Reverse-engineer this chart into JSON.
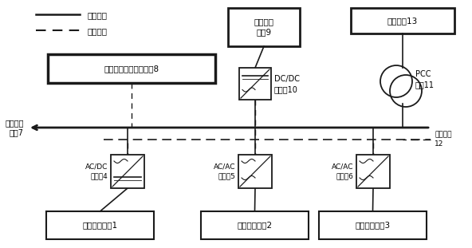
{
  "bg_color": "#ffffff",
  "line_color": "#1a1a1a",
  "legend_solid_label": "电力线路",
  "legend_dashed_label": "通信线路",
  "central_ctrl_label": "微电网群中央控制系统8",
  "storage_label": "联合储能\n系统9",
  "external_grid_label": "外部电网13",
  "op1_label": "微电网运营商1",
  "op2_label": "微电网运营商2",
  "op3_label": "微电网运营商3",
  "dcdc_label": "DC/DC\n变换器10",
  "acdc_label": "AC/DC\n变换器4",
  "acac5_label": "AC/AC\n变换器5",
  "acac6_label": "AC/AC\n变换器6",
  "bus_label": "电力公共\n母线7",
  "comm_bus_label": "通信母线\n12",
  "pcc_label": "PCC\n节点11",
  "fs": 7.5
}
